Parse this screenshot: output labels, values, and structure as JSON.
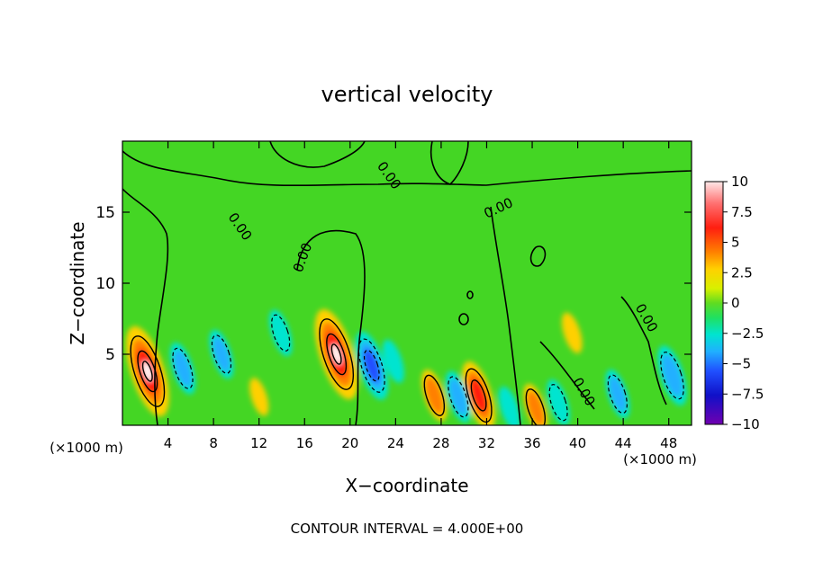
{
  "chart_data": {
    "type": "heatmap",
    "title": "vertical velocity",
    "xlabel": "X−coordinate",
    "ylabel": "Z−coordinate",
    "x_unit_left": "(×1000 m)",
    "x_unit_right": "(×1000 m)",
    "xlim": [
      0,
      50
    ],
    "ylim": [
      0,
      20
    ],
    "x_ticks": [
      4,
      8,
      12,
      16,
      20,
      24,
      28,
      32,
      36,
      40,
      44,
      48
    ],
    "y_ticks": [
      5,
      10,
      15
    ],
    "contour_label": "0.00",
    "footer": "CONTOUR INTERVAL = 4.000E+00",
    "colorbar": {
      "levels": [
        10,
        7.5,
        5,
        2.5,
        0,
        -2.5,
        -5,
        -7.5,
        -10
      ],
      "labels": [
        "10",
        "7.5",
        "5",
        "2.5",
        "0",
        "−2.5",
        "−5",
        "−7.5",
        "−10"
      ],
      "colors": [
        "#ffffff",
        "#ff9090",
        "#ff2010",
        "#ff7000",
        "#ffb000",
        "#e8e800",
        "#a8e000",
        "#30d830",
        "#20e070",
        "#00e0e0",
        "#20b8ff",
        "#2060ff",
        "#1010d0",
        "#6000b0"
      ]
    },
    "features": [
      {
        "kind": "updraft",
        "x": 2.2,
        "z": 3.8,
        "peak": 12.0
      },
      {
        "kind": "updraft",
        "x": 18.8,
        "z": 5.0,
        "peak": 12.0
      },
      {
        "kind": "updraft",
        "x": 31.3,
        "z": 2.1,
        "peak": 8.0
      },
      {
        "kind": "updraft",
        "x": 27.4,
        "z": 2.1,
        "peak": 5.0
      },
      {
        "kind": "updraft",
        "x": 36.3,
        "z": 1.2,
        "peak": 4.5
      },
      {
        "kind": "updraft",
        "x": 39.5,
        "z": 6.5,
        "peak": 3.0
      },
      {
        "kind": "updraft",
        "x": 12.0,
        "z": 2.0,
        "peak": 2.5
      },
      {
        "kind": "downdraft",
        "x": 21.9,
        "z": 4.2,
        "peak": -8.0
      },
      {
        "kind": "downdraft",
        "x": 48.3,
        "z": 3.5,
        "peak": -6.5
      },
      {
        "kind": "downdraft",
        "x": 5.3,
        "z": 4.0,
        "peak": -5.0
      },
      {
        "kind": "downdraft",
        "x": 8.7,
        "z": 5.0,
        "peak": -4.5
      },
      {
        "kind": "downdraft",
        "x": 29.5,
        "z": 2.0,
        "peak": -5.0
      },
      {
        "kind": "downdraft",
        "x": 43.5,
        "z": 2.2,
        "peak": -4.5
      },
      {
        "kind": "downdraft",
        "x": 38.3,
        "z": 1.6,
        "peak": -4.0
      },
      {
        "kind": "downdraft",
        "x": 34.0,
        "z": 1.2,
        "peak": -3.5
      },
      {
        "kind": "downdraft",
        "x": 13.9,
        "z": 6.5,
        "peak": -4.0
      },
      {
        "kind": "downdraft",
        "x": 23.8,
        "z": 4.5,
        "peak": -3.5
      }
    ]
  }
}
